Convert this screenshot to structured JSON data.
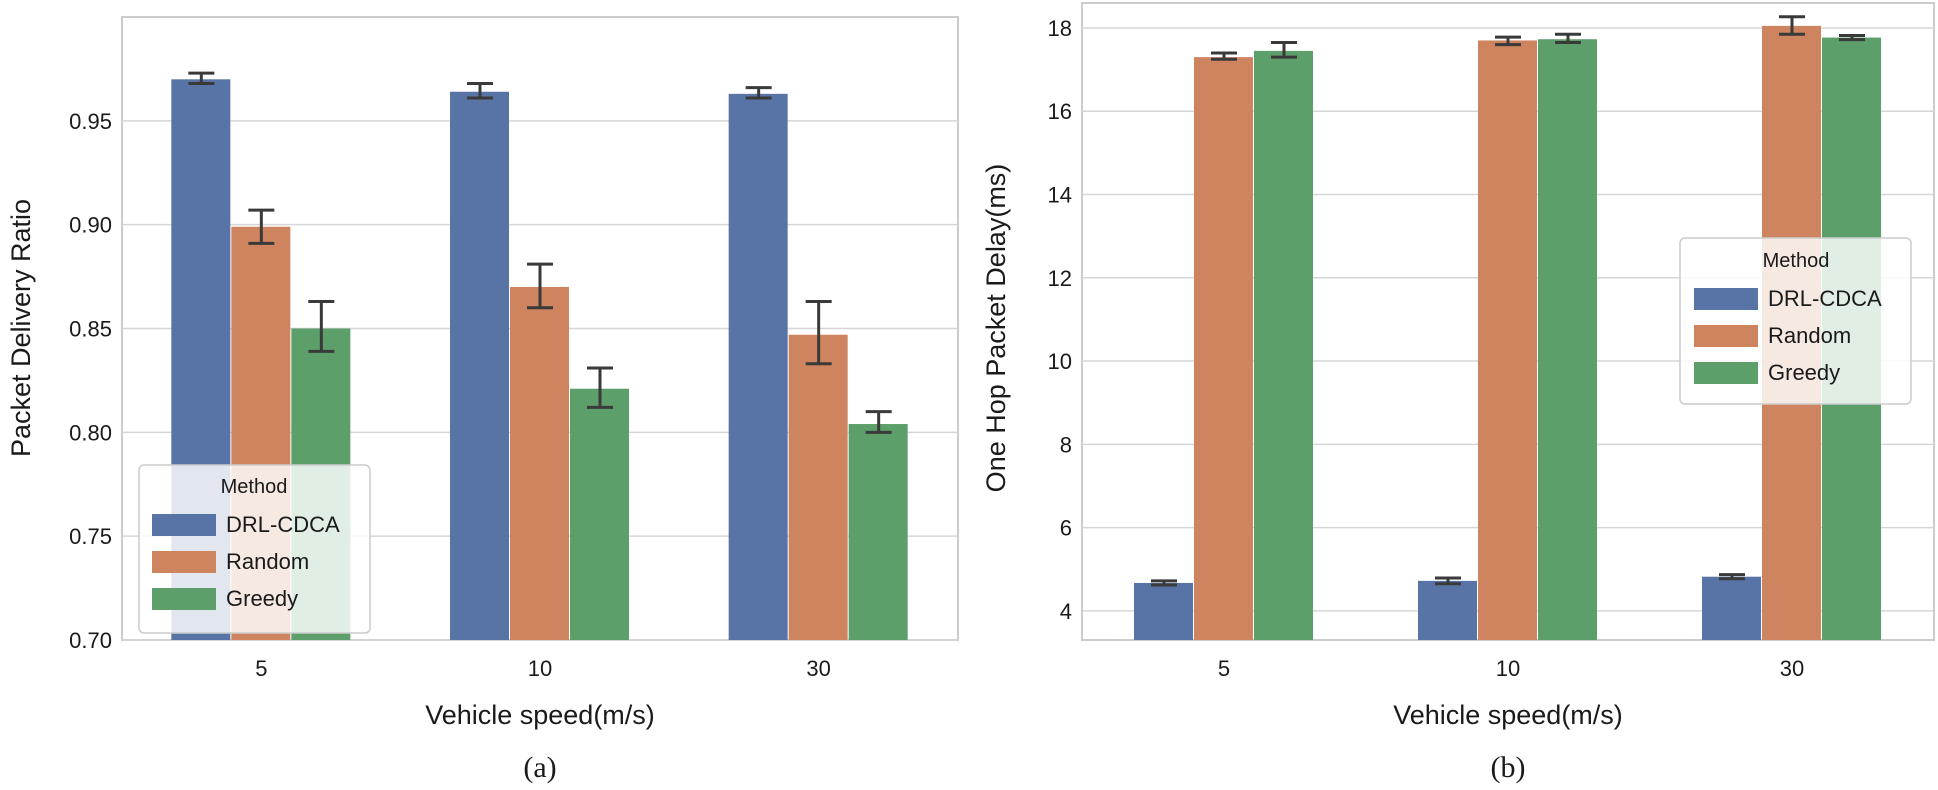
{
  "chart_data": [
    {
      "type": "bar",
      "panel": "(a)",
      "categories": [
        "5",
        "10",
        "30"
      ],
      "xlabel": "Vehicle speed(m/s)",
      "ylabel": "Packet Delivery Ratio",
      "ylim": [
        0.7,
        1.0
      ],
      "yticks": [
        0.7,
        0.75,
        0.8,
        0.85,
        0.9,
        0.95
      ],
      "yticklabels": [
        "0.70",
        "0.75",
        "0.80",
        "0.85",
        "0.90",
        "0.95"
      ],
      "grid": true,
      "legend": {
        "title": "Method",
        "placement": "lower-left"
      },
      "series": [
        {
          "name": "DRL-CDCA",
          "color": "#5874a6",
          "values": [
            0.97,
            0.964,
            0.963
          ],
          "err_low": [
            0.968,
            0.961,
            0.961
          ],
          "err_high": [
            0.973,
            0.968,
            0.966
          ]
        },
        {
          "name": "Random",
          "color": "#cd845f",
          "values": [
            0.899,
            0.87,
            0.847
          ],
          "err_low": [
            0.891,
            0.86,
            0.833
          ],
          "err_high": [
            0.907,
            0.881,
            0.863
          ]
        },
        {
          "name": "Greedy",
          "color": "#5c9f6b",
          "values": [
            0.85,
            0.821,
            0.804
          ],
          "err_low": [
            0.839,
            0.812,
            0.8
          ],
          "err_high": [
            0.863,
            0.831,
            0.81
          ]
        }
      ]
    },
    {
      "type": "bar",
      "panel": "(b)",
      "categories": [
        "5",
        "10",
        "30"
      ],
      "xlabel": "Vehicle speed(m/s)",
      "ylabel": "One Hop Packet Delay(ms)",
      "ylim": [
        3.3,
        18.6
      ],
      "yticks": [
        4,
        6,
        8,
        10,
        12,
        14,
        16,
        18
      ],
      "yticklabels": [
        "4",
        "6",
        "8",
        "10",
        "12",
        "14",
        "16",
        "18"
      ],
      "grid": true,
      "legend": {
        "title": "Method",
        "placement": "center-right"
      },
      "series": [
        {
          "name": "DRL-CDCA",
          "color": "#5874a6",
          "values": [
            4.67,
            4.72,
            4.82
          ],
          "err_low": [
            4.62,
            4.65,
            4.77
          ],
          "err_high": [
            4.72,
            4.79,
            4.87
          ]
        },
        {
          "name": "Random",
          "color": "#cd845f",
          "values": [
            17.3,
            17.7,
            18.05
          ],
          "err_low": [
            17.25,
            17.6,
            17.85
          ],
          "err_high": [
            17.4,
            17.78,
            18.27
          ]
        },
        {
          "name": "Greedy",
          "color": "#5c9f6b",
          "values": [
            17.45,
            17.73,
            17.77
          ],
          "err_low": [
            17.3,
            17.65,
            17.72
          ],
          "err_high": [
            17.65,
            17.85,
            17.82
          ]
        }
      ]
    }
  ],
  "captions": [
    "(a)",
    "(b)"
  ]
}
